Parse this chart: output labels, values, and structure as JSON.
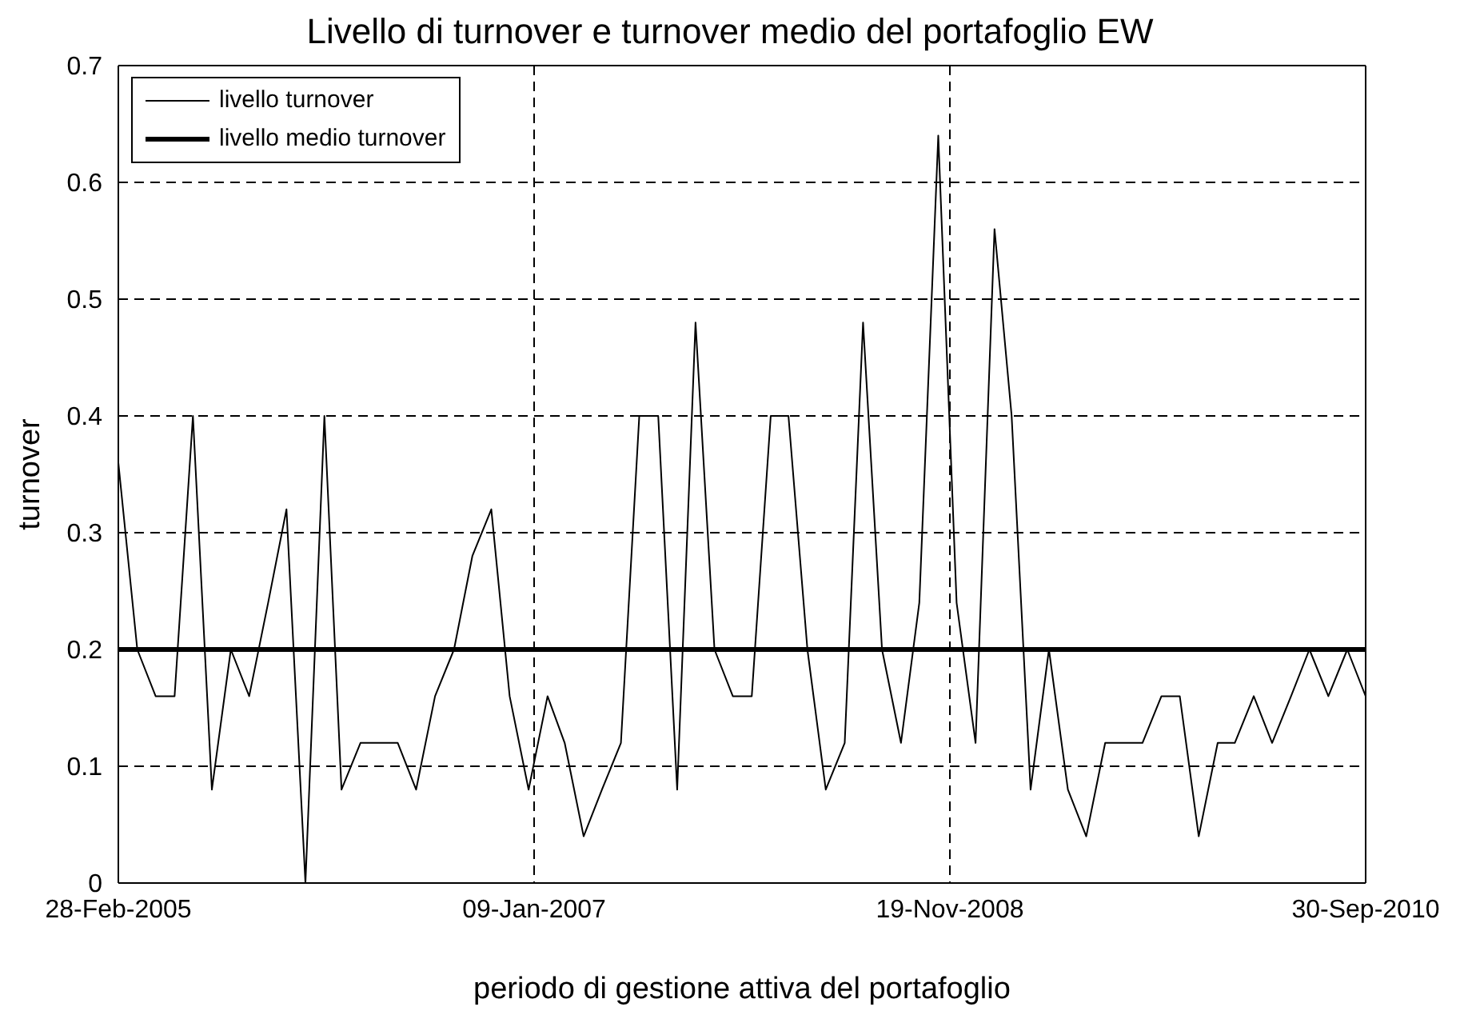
{
  "chart_data": {
    "type": "line",
    "title": "Livello di turnover e turnover medio del portafoglio EW",
    "xlabel": "periodo di gestione attiva del portafoglio",
    "ylabel": "turnover",
    "x": [
      "2005-02-28",
      "2005-03-31",
      "2005-04-30",
      "2005-05-31",
      "2005-06-30",
      "2005-07-31",
      "2005-08-31",
      "2005-09-30",
      "2005-10-31",
      "2005-11-30",
      "2005-12-31",
      "2006-01-31",
      "2006-02-28",
      "2006-03-31",
      "2006-04-30",
      "2006-05-31",
      "2006-06-30",
      "2006-07-31",
      "2006-08-31",
      "2006-09-30",
      "2006-10-31",
      "2006-11-30",
      "2006-12-31",
      "2007-01-31",
      "2007-02-28",
      "2007-03-31",
      "2007-04-30",
      "2007-05-31",
      "2007-06-30",
      "2007-07-31",
      "2007-08-31",
      "2007-09-30",
      "2007-10-31",
      "2007-11-30",
      "2007-12-31",
      "2008-01-31",
      "2008-02-29",
      "2008-03-31",
      "2008-04-30",
      "2008-05-31",
      "2008-06-30",
      "2008-07-31",
      "2008-08-31",
      "2008-09-30",
      "2008-10-31",
      "2008-11-30",
      "2008-12-31",
      "2009-01-31",
      "2009-02-28",
      "2009-03-31",
      "2009-04-30",
      "2009-05-31",
      "2009-06-30",
      "2009-07-31",
      "2009-08-31",
      "2009-09-30",
      "2009-10-31",
      "2009-11-30",
      "2009-12-31",
      "2010-01-31",
      "2010-02-28",
      "2010-03-31",
      "2010-04-30",
      "2010-05-31",
      "2010-06-30",
      "2010-07-31",
      "2010-08-31",
      "2010-09-30"
    ],
    "series": [
      {
        "name": "livello turnover",
        "color": "#000000",
        "values": [
          0.36,
          0.2,
          0.16,
          0.16,
          0.4,
          0.08,
          0.2,
          0.16,
          0.24,
          0.32,
          0,
          0.4,
          0.08,
          0.12,
          0.12,
          0.12,
          0.08,
          0.16,
          0.2,
          0.28,
          0.32,
          0.16,
          0.08,
          0.16,
          0.12,
          0.04,
          0.08,
          0.12,
          0.4,
          0.4,
          0.08,
          0.48,
          0.2,
          0.16,
          0.16,
          0.4,
          0.4,
          0.2,
          0.08,
          0.12,
          0.48,
          0.2,
          0.12,
          0.24,
          0.64,
          0.24,
          0.12,
          0.56,
          0.4,
          0.08,
          0.2,
          0.08,
          0.04,
          0.12,
          0.12,
          0.12,
          0.16,
          0.16,
          0.04,
          0.12,
          0.12,
          0.16,
          0.12,
          0.16,
          0.2,
          0.16,
          0.2,
          0.16
        ]
      },
      {
        "name": "livello medio turnover",
        "color": "#000000",
        "values": [
          0.2,
          0.2,
          0.2,
          0.2,
          0.2,
          0.2,
          0.2,
          0.2,
          0.2,
          0.2,
          0.2,
          0.2,
          0.2,
          0.2,
          0.2,
          0.2,
          0.2,
          0.2,
          0.2,
          0.2,
          0.2,
          0.2,
          0.2,
          0.2,
          0.2,
          0.2,
          0.2,
          0.2,
          0.2,
          0.2,
          0.2,
          0.2,
          0.2,
          0.2,
          0.2,
          0.2,
          0.2,
          0.2,
          0.2,
          0.2,
          0.2,
          0.2,
          0.2,
          0.2,
          0.2,
          0.2,
          0.2,
          0.2,
          0.2,
          0.2,
          0.2,
          0.2,
          0.2,
          0.2,
          0.2,
          0.2,
          0.2,
          0.2,
          0.2,
          0.2,
          0.2,
          0.2,
          0.2,
          0.2,
          0.2,
          0.2,
          0.2,
          0.2
        ]
      }
    ],
    "xlim": [
      "2005-02-28",
      "2010-09-30"
    ],
    "xticks": [
      {
        "value": "2005-02-28",
        "label": "28-Feb-2005"
      },
      {
        "value": "2007-01-09",
        "label": "09-Jan-2007"
      },
      {
        "value": "2008-11-19",
        "label": "19-Nov-2008"
      },
      {
        "value": "2010-09-30",
        "label": "30-Sep-2010"
      }
    ],
    "ylim": [
      0,
      0.7
    ],
    "yticks": [
      0,
      0.1,
      0.2,
      0.3,
      0.4,
      0.5,
      0.6,
      0.7
    ],
    "grid": true,
    "legend": "top left",
    "marker": "none",
    "line_style": "solid"
  }
}
